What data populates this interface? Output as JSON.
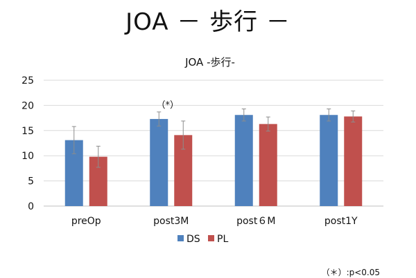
{
  "slide": {
    "title": "JOA － 歩行 －",
    "footnote": "（＊）:p<0.05"
  },
  "chart_data": {
    "type": "bar",
    "title": "JOA -歩行-",
    "categories": [
      "preOp",
      "post3M",
      "post６M",
      "post1Y"
    ],
    "series": [
      {
        "name": "DS",
        "color": "#4F81BD",
        "values": [
          13.1,
          17.3,
          18.1,
          18.1
        ],
        "errors": [
          2.7,
          1.4,
          1.2,
          1.2
        ]
      },
      {
        "name": "PL",
        "color": "#C0504D",
        "values": [
          9.8,
          14.1,
          16.3,
          17.8
        ],
        "errors": [
          2.1,
          2.8,
          1.4,
          1.1
        ]
      }
    ],
    "ylim": [
      0,
      25
    ],
    "yticks": [
      0,
      5,
      10,
      15,
      20,
      25
    ],
    "grid": true,
    "legend": "bottom",
    "annotations": [
      {
        "category": "post3M",
        "text": "（*）"
      }
    ]
  }
}
